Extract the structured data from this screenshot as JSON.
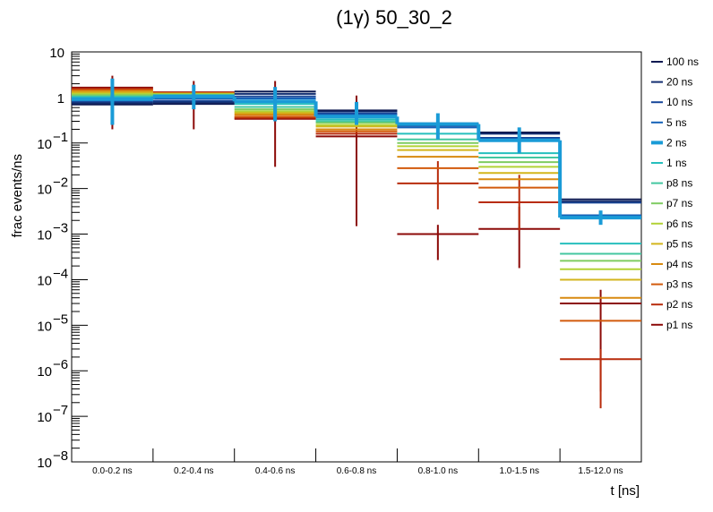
{
  "chart_data": {
    "type": "line",
    "title": "(1γ) 50_30_2",
    "xlabel": "t [ns]",
    "ylabel": "frac events/ns",
    "yscale": "log",
    "ylim": [
      1e-08,
      10
    ],
    "yticks": [
      {
        "value": 10,
        "label": "10"
      },
      {
        "value": 1,
        "label": "1"
      },
      {
        "value": 0.1,
        "label": "10",
        "sup": "−1"
      },
      {
        "value": 0.01,
        "label": "10",
        "sup": "−2"
      },
      {
        "value": 0.001,
        "label": "10",
        "sup": "−3"
      },
      {
        "value": 0.0001,
        "label": "10",
        "sup": "−4"
      },
      {
        "value": 1e-05,
        "label": "10",
        "sup": "−5"
      },
      {
        "value": 1e-06,
        "label": "10",
        "sup": "−6"
      },
      {
        "value": 1e-07,
        "label": "10",
        "sup": "−7"
      },
      {
        "value": 1e-08,
        "label": "10",
        "sup": "−8"
      }
    ],
    "categories": [
      "0.0-0.2 ns",
      "0.2-0.4 ns",
      "0.4-0.6 ns",
      "0.6-0.8 ns",
      "0.8-1.0 ns",
      "1.0-1.5 ns",
      "1.5-12.0 ns"
    ],
    "legend_position": "right",
    "grid": false,
    "series": [
      {
        "name": "100 ns",
        "color": "#0d1a52",
        "values": [
          0.7,
          0.72,
          1.35,
          0.52,
          0.27,
          0.17,
          0.0058
        ]
      },
      {
        "name": "20 ns",
        "color": "#142f72",
        "values": [
          0.75,
          0.78,
          1.2,
          0.5,
          0.26,
          0.16,
          0.0052
        ]
      },
      {
        "name": "10 ns",
        "color": "#17479a",
        "values": [
          0.8,
          0.85,
          1.05,
          0.45,
          0.24,
          0.13,
          0.0049
        ]
      },
      {
        "name": "5 ns",
        "color": "#1462b8",
        "values": [
          0.85,
          0.95,
          0.95,
          0.42,
          0.22,
          0.12,
          0.0026
        ]
      },
      {
        "name": "2 ns",
        "color": "#1a9bd7",
        "values": [
          0.92,
          1.05,
          0.82,
          0.38,
          0.26,
          0.115,
          0.0023
        ],
        "highlight": true,
        "errors": [
          [
            0.25,
            2.6
          ],
          [
            0.55,
            1.9
          ],
          [
            0.3,
            1.7
          ],
          [
            0.25,
            0.8
          ],
          [
            0.12,
            0.45
          ],
          [
            0.06,
            0.22
          ],
          [
            0.0016,
            0.0033
          ]
        ]
      },
      {
        "name": "1 ns",
        "color": "#26bfbd",
        "values": [
          1.0,
          1.08,
          0.72,
          0.33,
          0.16,
          0.06,
          0.00062
        ]
      },
      {
        "name": "p8 ns",
        "color": "#44c7a0",
        "values": [
          1.05,
          1.12,
          0.62,
          0.3,
          0.12,
          0.048,
          0.00037
        ]
      },
      {
        "name": "p7 ns",
        "color": "#7fcc62",
        "values": [
          1.12,
          1.15,
          0.55,
          0.28,
          0.1,
          0.038,
          0.00026
        ]
      },
      {
        "name": "p6 ns",
        "color": "#b2d236",
        "values": [
          1.2,
          1.18,
          0.5,
          0.25,
          0.085,
          0.03,
          0.00017
        ]
      },
      {
        "name": "p5 ns",
        "color": "#d3b51c",
        "values": [
          1.28,
          1.2,
          0.46,
          0.23,
          0.07,
          0.022,
          0.0001
        ]
      },
      {
        "name": "p4 ns",
        "color": "#d88a10",
        "values": [
          1.38,
          1.22,
          0.42,
          0.2,
          0.05,
          0.016,
          4e-05
        ]
      },
      {
        "name": "p3 ns",
        "color": "#d25a0c",
        "values": [
          1.45,
          1.25,
          0.38,
          0.18,
          0.028,
          0.0105,
          1.25e-05
        ]
      },
      {
        "name": "p2 ns",
        "color": "#b82c0c",
        "values": [
          1.55,
          1.28,
          0.36,
          0.16,
          0.013,
          0.005,
          1.8e-06
        ],
        "errors": [
          null,
          null,
          null,
          null,
          [
            0.0035,
            0.04
          ],
          [
            0.0012,
            0.02
          ],
          [
            1.5e-07,
            3e-06
          ]
        ]
      },
      {
        "name": "p1 ns",
        "color": "#8c0a08",
        "values": [
          1.65,
          1.3,
          0.34,
          0.14,
          0.001,
          0.0013,
          3e-05
        ],
        "errors": [
          [
            0.2,
            3.0
          ],
          [
            0.2,
            2.3
          ],
          [
            0.03,
            2.3
          ],
          [
            0.0015,
            1.1
          ],
          [
            0.00027,
            0.0016
          ],
          [
            0.00018,
            0.004
          ],
          [
            3.5e-07,
            6e-05
          ]
        ]
      }
    ]
  }
}
